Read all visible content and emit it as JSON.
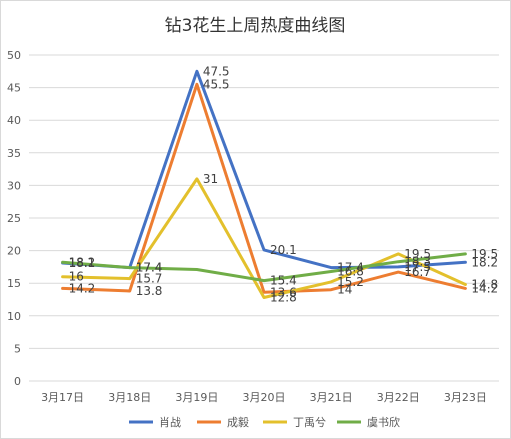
{
  "chart_data": {
    "type": "line",
    "title": "钻3花生上周热度曲线图",
    "categories": [
      "3月17日",
      "3月18日",
      "3月19日",
      "3月20日",
      "3月21日",
      "3月22日",
      "3月23日"
    ],
    "ylim": [
      0,
      50
    ],
    "yticks": [
      0,
      5,
      10,
      15,
      20,
      25,
      30,
      35,
      40,
      45,
      50
    ],
    "grid": true,
    "legend_position": "bottom",
    "series": [
      {
        "name": "肖战",
        "color": "#4472C4",
        "values": [
          18.1,
          17.4,
          47.5,
          20.1,
          17.4,
          17.5,
          18.2
        ]
      },
      {
        "name": "成毅",
        "color": "#ED7D31",
        "values": [
          14.2,
          13.8,
          45.5,
          13.6,
          14,
          16.7,
          14.2
        ]
      },
      {
        "name": "丁禹兮",
        "color": "#E3C02C",
        "values": [
          16,
          15.7,
          31,
          12.8,
          15.2,
          19.5,
          14.8
        ]
      },
      {
        "name": "虞书欣",
        "color": "#70AD47",
        "values": [
          18.2,
          17.4,
          17.1,
          15.4,
          16.8,
          18.3,
          19.5
        ]
      }
    ],
    "data_labels": [
      [
        "18.1",
        "17.4",
        "47.5",
        "20.1",
        "17.4",
        "17.5",
        "18.2"
      ],
      [
        "14.2",
        "13.8",
        "45.5",
        "13.6",
        "14",
        "16.7",
        "14.2"
      ],
      [
        "16",
        "15.7",
        "31",
        "12.8",
        "15.2",
        "19.5",
        "14.8"
      ],
      [
        "18.2",
        "17.4",
        "",
        "15.4",
        "16.8",
        "18.3",
        "19.5"
      ]
    ]
  }
}
